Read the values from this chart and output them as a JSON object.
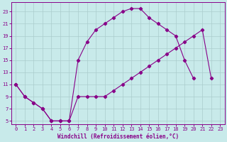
{
  "xlabel": "Windchill (Refroidissement éolien,°C)",
  "bg_color": "#c8eaea",
  "line_color": "#880088",
  "grid_color": "#aacccc",
  "xlim": [
    -0.5,
    23.5
  ],
  "ylim": [
    4.5,
    24.5
  ],
  "xticks": [
    0,
    1,
    2,
    3,
    4,
    5,
    6,
    7,
    8,
    9,
    10,
    11,
    12,
    13,
    14,
    15,
    16,
    17,
    18,
    19,
    20,
    21,
    22,
    23
  ],
  "yticks": [
    5,
    7,
    9,
    11,
    13,
    15,
    17,
    19,
    21,
    23
  ],
  "line1_x": [
    0,
    1,
    2,
    3,
    4,
    5,
    6,
    7,
    8,
    9,
    10,
    11,
    12,
    13,
    14,
    15,
    16,
    17,
    18,
    19,
    20
  ],
  "line1_y": [
    11,
    9,
    8,
    7,
    5,
    5,
    5,
    15,
    18,
    20,
    21,
    22,
    23,
    23.5,
    23.5,
    22,
    21,
    20,
    19,
    15,
    12
  ],
  "line2_x": [
    0,
    1,
    2,
    3,
    4,
    5,
    6,
    7,
    8,
    9,
    10,
    11,
    12,
    13,
    14,
    15,
    16,
    17,
    18,
    19,
    20,
    21,
    22
  ],
  "line2_y": [
    11,
    9,
    8,
    7,
    5,
    5,
    5,
    9,
    9,
    9,
    9,
    10,
    11,
    12,
    13,
    14,
    15,
    16,
    17,
    18,
    19,
    20,
    12
  ]
}
